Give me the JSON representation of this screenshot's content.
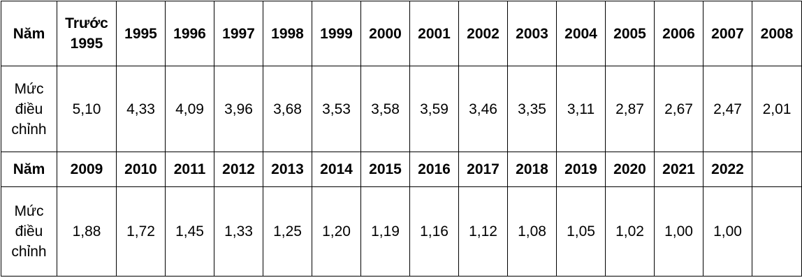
{
  "table": {
    "rows": [
      [
        "Năm",
        "Trước 1995",
        "1995",
        "1996",
        "1997",
        "1998",
        "1999",
        "2000",
        "2001",
        "2002",
        "2003",
        "2004",
        "2005",
        "2006",
        "2007",
        "2008"
      ],
      [
        "Mức điều chỉnh",
        "5,10",
        "4,33",
        "4,09",
        "3,96",
        "3,68",
        "3,53",
        "3,58",
        "3,59",
        "3,46",
        "3,35",
        "3,11",
        "2,87",
        "2,67",
        "2,47",
        "2,01"
      ],
      [
        "Năm",
        "2009",
        "2010",
        "2011",
        "2012",
        "2013",
        "2014",
        "2015",
        "2016",
        "2017",
        "2018",
        "2019",
        "2020",
        "2021",
        "2022"
      ],
      [
        "Mức điều chỉnh",
        "1,88",
        "1,72",
        "1,45",
        "1,33",
        "1,25",
        "1,20",
        "1,19",
        "1,16",
        "1,12",
        "1,08",
        "1,05",
        "1,02",
        "1,00",
        "1,00"
      ]
    ]
  }
}
